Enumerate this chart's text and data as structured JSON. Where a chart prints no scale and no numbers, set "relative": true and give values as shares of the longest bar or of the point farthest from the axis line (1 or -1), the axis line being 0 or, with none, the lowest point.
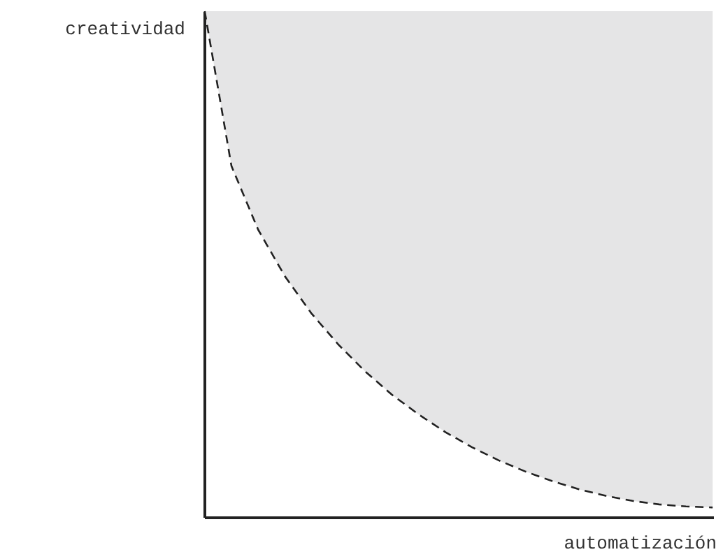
{
  "chart_data": {
    "type": "line",
    "relative": true,
    "xlabel": "automatización",
    "ylabel": "creatividad",
    "categories": [
      null,
      null,
      null,
      null,
      null,
      null,
      null,
      null,
      null,
      null,
      null,
      null,
      null,
      null,
      null,
      null,
      null,
      null,
      null,
      null
    ],
    "series": [
      {
        "color": "#222222",
        "values": [
          1.0,
          0.694,
          0.568,
          0.476,
          0.402,
          0.341,
          0.288,
          0.242,
          0.203,
          0.168,
          0.138,
          0.112,
          0.09,
          0.071,
          0.055,
          0.042,
          0.032,
          0.025,
          0.021,
          0.019
        ],
        "lower": [
          1.0,
          0.694,
          0.568,
          0.476,
          0.402,
          0.341,
          0.288,
          0.242,
          0.203,
          0.168,
          0.138,
          0.112,
          0.09,
          0.071,
          0.055,
          0.042,
          0.032,
          0.025,
          0.021,
          0.019
        ],
        "upper": [
          1,
          1,
          1,
          1,
          1,
          1,
          1,
          1,
          1,
          1,
          1,
          1,
          1,
          1,
          1,
          1,
          1,
          1,
          1,
          1
        ]
      }
    ],
    "line_style": "dashed",
    "grid": false
  }
}
